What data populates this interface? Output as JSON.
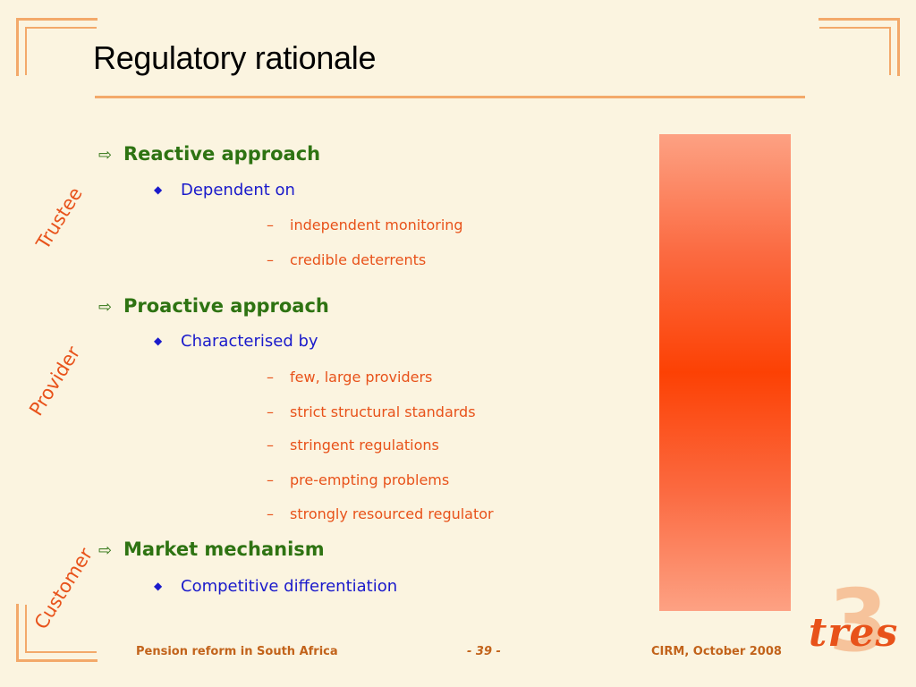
{
  "slide": {
    "title": "Regulatory rationale"
  },
  "side_labels": [
    "Trustee",
    "Provider",
    "Customer"
  ],
  "content": {
    "sections": [
      {
        "heading": "Reactive approach",
        "sub": "Dependent on",
        "items": [
          "independent monitoring",
          "credible deterrents"
        ]
      },
      {
        "heading": "Proactive approach",
        "sub": "Characterised by",
        "items": [
          "few, large providers",
          "strict structural standards",
          "stringent regulations",
          "pre-empting problems",
          "strongly resourced regulator"
        ]
      },
      {
        "heading": "Market mechanism",
        "sub": "Competitive differentiation",
        "items": []
      }
    ]
  },
  "footer": {
    "left": "Pension reform in South Africa",
    "center": "- 39 -",
    "right": "CIRM, October 2008"
  },
  "logo": {
    "text": "tres",
    "numeral": "3"
  },
  "colors": {
    "background": "#fbf4e0",
    "accent_rule": "#f3a96a",
    "heading_green": "#2e7312",
    "sub_blue": "#1a1acb",
    "item_orange": "#e8521a",
    "bar_center": "#fc4104",
    "bar_edge": "#fda183"
  },
  "icons": {
    "level1": "right-arrow-outline-icon",
    "level2": "diamond-bullet-icon",
    "level3": "en-dash"
  }
}
